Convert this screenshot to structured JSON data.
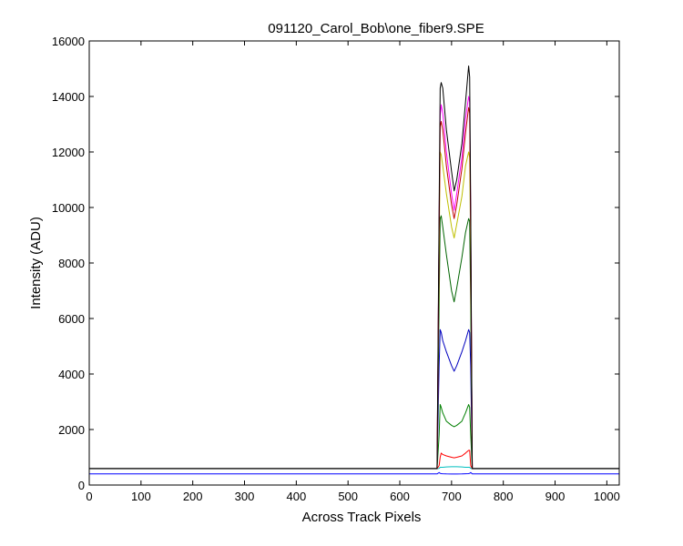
{
  "chart_data": {
    "type": "line",
    "title": "091120_Carol_Bob\\one_fiber9.SPE",
    "xlabel": "Across Track Pixels",
    "ylabel": "Intensity (ADU)",
    "xlim": [
      0,
      1024
    ],
    "ylim": [
      0,
      16000
    ],
    "xticks": [
      0,
      100,
      200,
      300,
      400,
      500,
      600,
      700,
      800,
      900,
      1000
    ],
    "yticks": [
      0,
      2000,
      4000,
      6000,
      8000,
      10000,
      12000,
      14000,
      16000
    ],
    "grid": false,
    "legend": "none",
    "series": [
      {
        "color": "#0000ff",
        "x": [
          0,
          672,
          676,
          678,
          680,
          683,
          690,
          700,
          705,
          710,
          720,
          727,
          733,
          735,
          737,
          740,
          1024
        ],
        "y": [
          400,
          400,
          450,
          420,
          410,
          405,
          400,
          398,
          396,
          398,
          400,
          405,
          410,
          420,
          450,
          400,
          400
        ]
      },
      {
        "color": "#00bfbf",
        "x": [
          0,
          672,
          676,
          678,
          680,
          683,
          690,
          700,
          705,
          710,
          720,
          727,
          733,
          735,
          737,
          740,
          1024
        ],
        "y": [
          580,
          580,
          600,
          640,
          640,
          640,
          650,
          660,
          660,
          660,
          650,
          640,
          640,
          640,
          600,
          580,
          580
        ]
      },
      {
        "color": "#ff0000",
        "x": [
          0,
          672,
          676,
          678,
          680,
          683,
          690,
          700,
          705,
          710,
          720,
          727,
          733,
          735,
          737,
          740,
          1024
        ],
        "y": [
          590,
          590,
          700,
          1000,
          1150,
          1100,
          1050,
          1000,
          980,
          1000,
          1050,
          1150,
          1250,
          1250,
          700,
          590,
          590
        ]
      },
      {
        "color": "#007f00",
        "x": [
          0,
          672,
          676,
          678,
          680,
          683,
          690,
          700,
          705,
          710,
          720,
          727,
          733,
          735,
          737,
          740,
          1024
        ],
        "y": [
          590,
          590,
          1800,
          2900,
          2800,
          2600,
          2300,
          2150,
          2100,
          2150,
          2300,
          2600,
          2900,
          2800,
          1800,
          590,
          590
        ]
      },
      {
        "color": "#0000bf",
        "x": [
          0,
          672,
          676,
          678,
          680,
          683,
          690,
          700,
          705,
          710,
          720,
          727,
          733,
          735,
          737,
          740,
          1024
        ],
        "y": [
          590,
          590,
          4300,
          5600,
          5500,
          5200,
          4800,
          4300,
          4100,
          4300,
          4800,
          5200,
          5600,
          5500,
          4300,
          590,
          590
        ]
      },
      {
        "color": "#006400",
        "x": [
          0,
          672,
          676,
          678,
          680,
          683,
          690,
          700,
          705,
          710,
          720,
          727,
          733,
          735,
          737,
          740,
          1024
        ],
        "y": [
          590,
          590,
          6500,
          9600,
          9700,
          9300,
          8300,
          7000,
          6600,
          7100,
          8200,
          9100,
          9600,
          9500,
          6500,
          590,
          590
        ]
      },
      {
        "color": "#bfbf00",
        "x": [
          0,
          672,
          676,
          678,
          680,
          683,
          690,
          700,
          705,
          710,
          720,
          727,
          733,
          735,
          737,
          740,
          1024
        ],
        "y": [
          590,
          590,
          8500,
          12000,
          11900,
          11500,
          10500,
          9300,
          8900,
          9400,
          10400,
          11500,
          12000,
          11800,
          8500,
          590,
          590
        ]
      },
      {
        "color": "#ff00ff",
        "x": [
          0,
          672,
          676,
          678,
          680,
          683,
          690,
          700,
          705,
          710,
          720,
          727,
          733,
          735,
          737,
          740,
          1024
        ],
        "y": [
          590,
          590,
          9500,
          13300,
          13700,
          13400,
          12000,
          10500,
          9900,
          10500,
          11800,
          13200,
          14000,
          13800,
          9500,
          590,
          590
        ]
      },
      {
        "color": "#bf0000",
        "x": [
          0,
          672,
          676,
          678,
          680,
          683,
          690,
          700,
          705,
          710,
          720,
          727,
          733,
          735,
          737,
          740,
          1024
        ],
        "y": [
          590,
          590,
          9200,
          12900,
          13100,
          12800,
          11500,
          10100,
          9600,
          10100,
          11400,
          12700,
          13600,
          13400,
          9200,
          590,
          590
        ]
      },
      {
        "color": "#000000",
        "x": [
          0,
          672,
          676,
          678,
          680,
          683,
          690,
          700,
          705,
          710,
          720,
          727,
          733,
          735,
          737,
          740,
          1024
        ],
        "y": [
          600,
          600,
          10000,
          14300,
          14500,
          14300,
          12800,
          11300,
          10600,
          11000,
          12300,
          13800,
          15100,
          14700,
          10000,
          600,
          600
        ]
      }
    ]
  }
}
